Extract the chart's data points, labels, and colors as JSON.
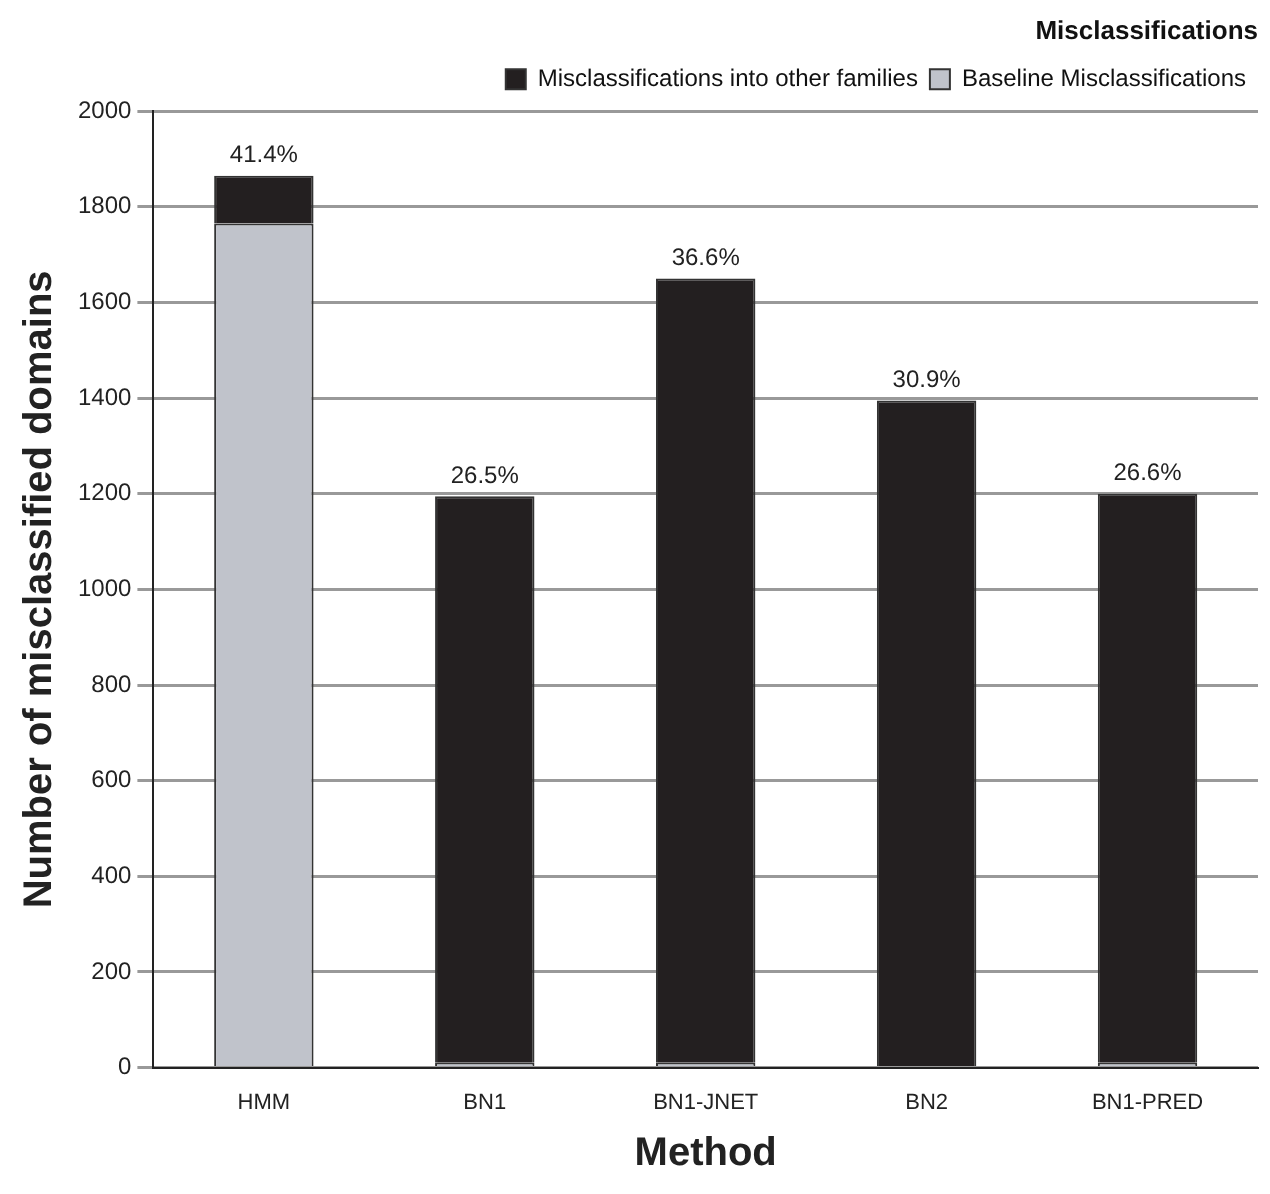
{
  "chart_data": {
    "type": "bar",
    "title": "Misclassifications",
    "xlabel": "Method",
    "ylabel": "Number of misclassified domains",
    "categories": [
      "HMM",
      "BN1",
      "BN1-JNET",
      "BN2",
      "BN1-PRED"
    ],
    "stacked": true,
    "series": [
      {
        "name": "Baseline Misclassifications",
        "color": "#c0c3cb",
        "values": [
          1765,
          10,
          10,
          0,
          10
        ]
      },
      {
        "name": "Misclassifications into other families",
        "color": "#231f20",
        "values": [
          100,
          1185,
          1640,
          1395,
          1190
        ]
      }
    ],
    "ylim": [
      0,
      2000
    ],
    "yticks": [
      0,
      200,
      400,
      600,
      800,
      1000,
      1200,
      1400,
      1600,
      1800,
      2000
    ],
    "grid": "y",
    "legend": "top right",
    "annotations": [
      {
        "text": "41.4%",
        "x": "HMM",
        "y": 1865
      },
      {
        "text": "26.5%",
        "x": "BN1",
        "y": 1195
      },
      {
        "text": "36.6%",
        "x": "BN1-JNET",
        "y": 1650
      },
      {
        "text": "30.9%",
        "x": "BN2",
        "y": 1395
      },
      {
        "text": "26.6%",
        "x": "BN1-PRED",
        "y": 1200
      }
    ]
  }
}
